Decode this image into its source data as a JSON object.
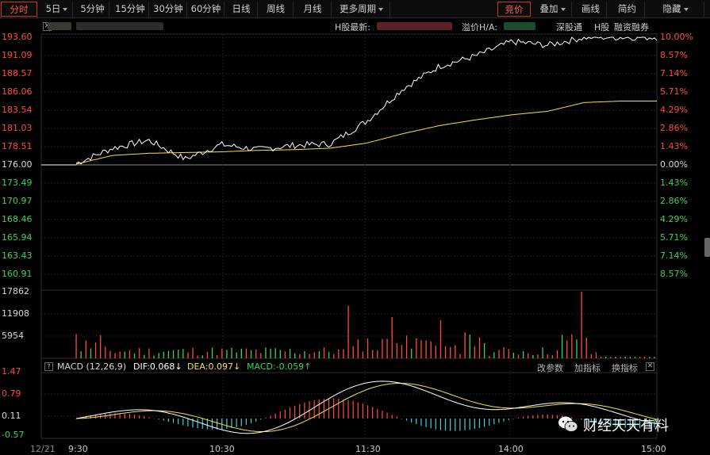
{
  "toolbar": {
    "items": [
      {
        "label": "分时",
        "active": true
      },
      {
        "label": "5日",
        "dropdown": true
      },
      {
        "label": "5分钟"
      },
      {
        "label": "15分钟"
      },
      {
        "label": "30分钟"
      },
      {
        "label": "60分钟"
      },
      {
        "label": "日线"
      },
      {
        "label": "周线"
      },
      {
        "label": "月线"
      },
      {
        "label": "更多周期",
        "dropdown": true
      },
      {
        "label": "竞价",
        "active": true
      },
      {
        "label": "叠加",
        "dropdown": true
      },
      {
        "label": "画线"
      },
      {
        "label": "简约"
      },
      {
        "label": "隐藏",
        "dropdown": true
      }
    ]
  },
  "info": {
    "hshare_label": "H股最新:",
    "premium_label": "溢价H/A:",
    "sgt_label": "深股通",
    "h_label": "H股",
    "margin_label": "融资融券"
  },
  "price_axis": {
    "left": [
      "193.60",
      "191.09",
      "188.57",
      "186.06",
      "183.54",
      "181.03",
      "178.51",
      "176.00",
      "173.49",
      "170.97",
      "168.46",
      "165.94",
      "163.43",
      "160.91"
    ],
    "right": [
      "10.00%",
      "8.57%",
      "7.14%",
      "5.71%",
      "4.29%",
      "2.86%",
      "1.43%",
      "0.00%",
      "1.43%",
      "2.86%",
      "4.29%",
      "5.71%",
      "7.14%",
      "8.57%"
    ]
  },
  "volume_axis": [
    "17862",
    "11908",
    "5954"
  ],
  "macd": {
    "title": "MACD (12,26,9)",
    "dif": "DIF:0.068↓",
    "dea": "DEA:0.097↓",
    "macd": "MACD:-0.059↑",
    "modify_params": "改参数",
    "add_indicator": "加指标",
    "switch_indicator": "换指标",
    "axis": [
      "1.47",
      "0.79",
      "0.11",
      "-0.57"
    ]
  },
  "time_axis": {
    "date": "12/21",
    "labels": [
      "9:30",
      "10:30",
      "11:30",
      "14:00",
      "15:00"
    ]
  },
  "watermark": {
    "text": "财经天天有料"
  },
  "colors": {
    "up": "#ff4b3e",
    "down": "#3ed25a",
    "price_line": "#ffffff",
    "avg_line": "#f2e24a",
    "dea_line": "#f2e24a",
    "dif_line": "#ffffff"
  },
  "chart_data": [
    {
      "type": "line",
      "name_note": "intraday price",
      "prev_close": 176.0,
      "ylim": [
        160.91,
        193.6
      ],
      "x": [
        "9:30",
        "9:45",
        "10:00",
        "10:15",
        "10:30",
        "10:45",
        "11:00",
        "11:15",
        "11:30",
        "13:15",
        "13:30",
        "13:45",
        "14:00",
        "14:15",
        "14:30",
        "14:45",
        "15:00"
      ],
      "series": [
        {
          "values": [
            176.2,
            178.3,
            179.4,
            176.8,
            178.8,
            178.1,
            178.7,
            178.9,
            182.0,
            186.5,
            189.6,
            191.0,
            193.0,
            192.5,
            193.6,
            193.6,
            193.6
          ]
        },
        {
          "values": [
            176.1,
            177.3,
            177.6,
            177.7,
            177.8,
            178.0,
            178.1,
            178.3,
            179.0,
            180.3,
            181.4,
            182.2,
            182.9,
            183.4,
            184.6,
            184.8,
            184.8
          ]
        }
      ]
    },
    {
      "type": "bar",
      "name_note": "volume",
      "ylim": [
        0,
        17862
      ],
      "ticks": [
        5954,
        11908,
        17862
      ]
    },
    {
      "type": "line",
      "name_note": "MACD",
      "ylim": [
        -0.57,
        1.47
      ],
      "ticks": [
        1.47,
        0.79,
        0.11,
        -0.57
      ]
    }
  ]
}
